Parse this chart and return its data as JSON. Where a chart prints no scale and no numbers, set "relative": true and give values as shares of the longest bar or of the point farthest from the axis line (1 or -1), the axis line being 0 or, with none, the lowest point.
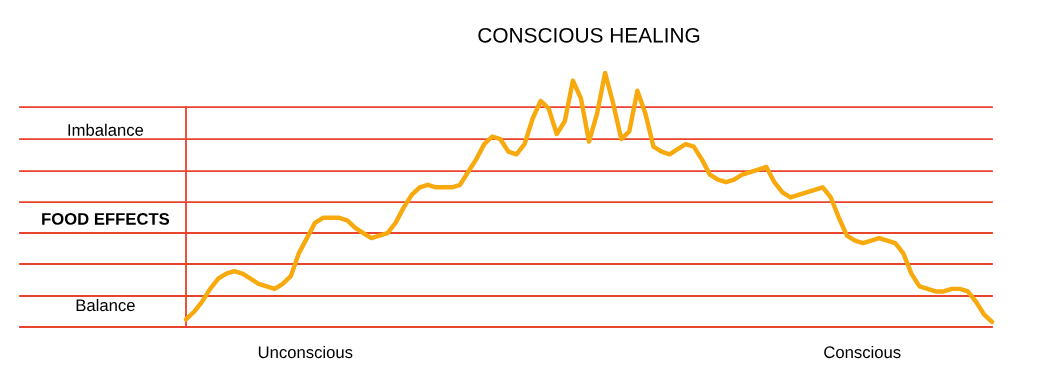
{
  "chart_data": {
    "type": "line",
    "title": "CONSCIOUS HEALING",
    "ylabel": "FOOD EFFECTS",
    "relative": true,
    "annotations": [
      "Imbalance",
      "Balance",
      "Unconscious",
      "Conscious"
    ],
    "categories": [
      null,
      null,
      null,
      null,
      null,
      null,
      null,
      null,
      null,
      null,
      null,
      null,
      null,
      null,
      null,
      null,
      null,
      null,
      null,
      null,
      null,
      null,
      null,
      null,
      null,
      null,
      null,
      null,
      null,
      null,
      null,
      null,
      null,
      null,
      null,
      null,
      null,
      null,
      null,
      null,
      null,
      null,
      null,
      null,
      null,
      null,
      null,
      null,
      null,
      null,
      null,
      null,
      null,
      null,
      null,
      null,
      null,
      null,
      null,
      null,
      null,
      null,
      null,
      null,
      null,
      null,
      null,
      null,
      null,
      null,
      null,
      null,
      null,
      null,
      null,
      null,
      null,
      null,
      null,
      null,
      null,
      null,
      null,
      null,
      null,
      null,
      null,
      null,
      null,
      null,
      null,
      null,
      null,
      null,
      null,
      null,
      null,
      null,
      null,
      null,
      null
    ],
    "series": [
      {
        "color": "#f7a90d",
        "values": [
          0.03,
          0.06,
          0.1,
          0.15,
          0.19,
          0.21,
          0.22,
          0.21,
          0.19,
          0.17,
          0.16,
          0.15,
          0.17,
          0.2,
          0.29,
          0.35,
          0.41,
          0.43,
          0.43,
          0.43,
          0.42,
          0.39,
          0.37,
          0.35,
          0.36,
          0.37,
          0.41,
          0.47,
          0.52,
          0.55,
          0.56,
          0.55,
          0.55,
          0.55,
          0.56,
          0.61,
          0.66,
          0.72,
          0.75,
          0.74,
          0.69,
          0.68,
          0.72,
          0.82,
          0.89,
          0.86,
          0.76,
          0.81,
          0.97,
          0.9,
          0.73,
          0.84,
          1.0,
          0.88,
          0.74,
          0.77,
          0.93,
          0.84,
          0.71,
          0.69,
          0.68,
          0.7,
          0.72,
          0.71,
          0.66,
          0.6,
          0.58,
          0.57,
          0.58,
          0.6,
          0.61,
          0.62,
          0.63,
          0.57,
          0.53,
          0.51,
          0.52,
          0.53,
          0.54,
          0.55,
          0.51,
          0.43,
          0.36,
          0.34,
          0.33,
          0.34,
          0.35,
          0.34,
          0.33,
          0.29,
          0.21,
          0.16,
          0.15,
          0.14,
          0.14,
          0.15,
          0.15,
          0.14,
          0.1,
          0.05,
          0.02
        ]
      }
    ],
    "ref_lines": [
      {
        "axis": "y",
        "value": 0.122,
        "color": "#e8432b"
      },
      {
        "axis": "y",
        "value": 0.248,
        "color": "#e8432b"
      },
      {
        "axis": "y",
        "value": 0.37,
        "color": "#e8432b"
      },
      {
        "axis": "y",
        "value": 0.492,
        "color": "#e8432b"
      },
      {
        "axis": "y",
        "value": 0.614,
        "color": "#e8432b"
      },
      {
        "axis": "y",
        "value": 0.74,
        "color": "#e8432b"
      },
      {
        "axis": "y",
        "value": 0.866,
        "color": "#e8432b"
      }
    ],
    "grid": false,
    "legend": false,
    "marker": "none",
    "line_style": "solid"
  }
}
